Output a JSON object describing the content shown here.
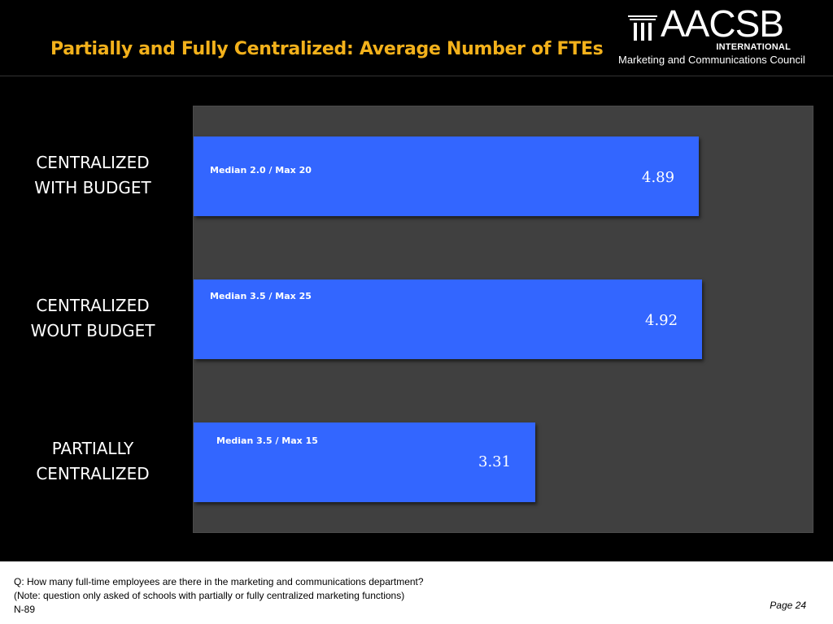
{
  "header": {
    "title": "Partially and Fully Centralized: Average Number of FTEs",
    "logo_word": "AACSB",
    "logo_sub": "INTERNATIONAL",
    "council": "Marketing and Communications Council"
  },
  "chart_data": {
    "type": "bar",
    "orientation": "horizontal",
    "title": "Partially and Fully Centralized: Average Number of FTEs",
    "categories": [
      "CENTRALIZED WITH BUDGET",
      "CENTRALIZED WOUT BUDGET",
      "PARTIALLY CENTRALIZED"
    ],
    "category_lines": [
      [
        "CENTRALIZED",
        "WITH BUDGET"
      ],
      [
        "CENTRALIZED",
        "WOUT BUDGET"
      ],
      [
        "PARTIALLY",
        "CENTRALIZED"
      ]
    ],
    "values": [
      4.89,
      4.92,
      3.31
    ],
    "value_labels": [
      "4.89",
      "4.92",
      "3.31"
    ],
    "annotations": [
      "Median 2.0 / Max 20",
      "Median  3.5 / Max 25",
      "Median 3.5 / Max 15"
    ],
    "xlim": [
      0,
      6
    ],
    "grid": false,
    "bar_color": "#3366ff",
    "plot_bg": "#404040"
  },
  "footer": {
    "question": "Q: How many full-time employees are there in the marketing and communications department?",
    "note": "(Note: question only asked of schools with partially or fully centralized marketing functions)",
    "n": "N-89",
    "page": "Page 24"
  },
  "colors": {
    "title": "#f3b11b",
    "background": "#000000",
    "footer_bg": "#ffffff"
  }
}
